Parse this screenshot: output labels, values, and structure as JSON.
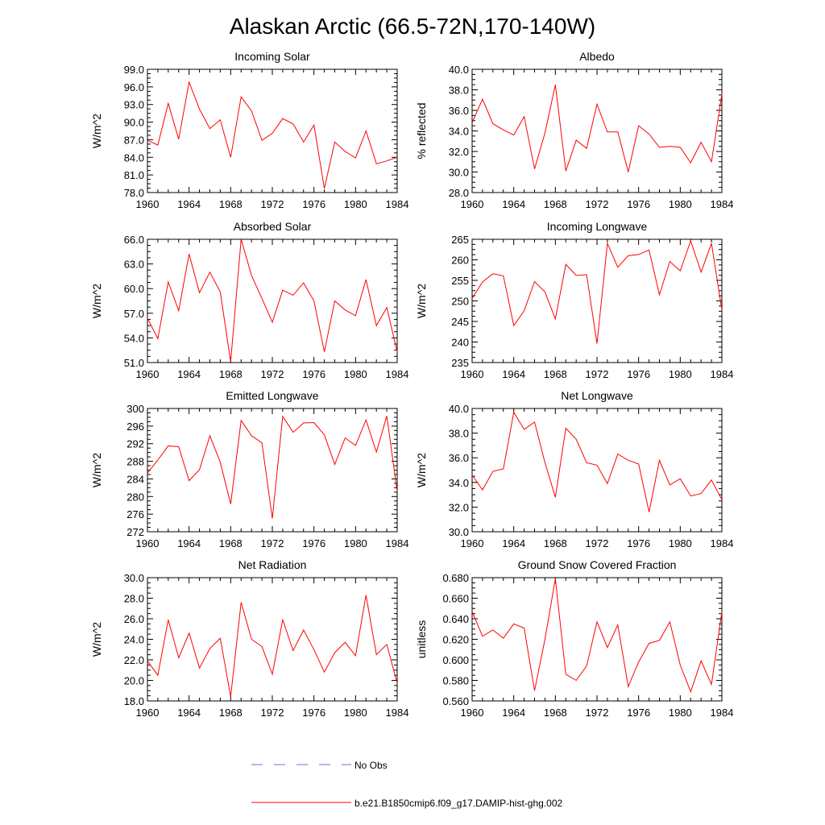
{
  "title": "Alaskan Arctic (66.5-72N,170-140W)",
  "colors": {
    "model": "#ff0000",
    "obs": "#6f6fd8",
    "axis": "#000000"
  },
  "legend": [
    {
      "name": "obs-legend",
      "label": "No Obs",
      "style": "dashed",
      "color": "#6f6fd8"
    },
    {
      "name": "model-legend",
      "label": "b.e21.B1850cmip6.f09_g17.DAMIP-hist-ghg.002",
      "style": "solid",
      "color": "#ff0000"
    }
  ],
  "chart_data": [
    {
      "type": "line",
      "title": "Incoming Solar",
      "ylabel": "W/m^2",
      "xlim": [
        1960,
        1984
      ],
      "ylim": [
        78,
        99
      ],
      "y_decimals": 1,
      "x_ticks": [
        1960,
        1964,
        1968,
        1972,
        1976,
        1980,
        1984
      ],
      "y_ticks": [
        78,
        81,
        84,
        87,
        90,
        93,
        96,
        99
      ],
      "series": [
        {
          "x": [
            1960,
            1961,
            1962,
            1963,
            1964,
            1965,
            1966,
            1967,
            1968,
            1969,
            1970,
            1971,
            1972,
            1973,
            1974,
            1975,
            1976,
            1977,
            1978,
            1979,
            1980,
            1981,
            1982,
            1983,
            1984
          ],
          "values": [
            86.9,
            86.1,
            93.2,
            87.1,
            96.8,
            92.2,
            88.9,
            90.4,
            84.0,
            94.3,
            91.9,
            86.9,
            88.1,
            90.6,
            89.7,
            86.6,
            89.5,
            78.7,
            86.6,
            85.0,
            83.9,
            88.5,
            82.9,
            83.4,
            84.0
          ]
        }
      ]
    },
    {
      "type": "line",
      "title": "Albedo",
      "ylabel": "% reflected",
      "xlim": [
        1960,
        1984
      ],
      "ylim": [
        28,
        40
      ],
      "y_decimals": 1,
      "x_ticks": [
        1960,
        1964,
        1968,
        1972,
        1976,
        1980,
        1984
      ],
      "y_ticks": [
        28,
        30,
        32,
        34,
        36,
        38,
        40
      ],
      "series": [
        {
          "x": [
            1960,
            1961,
            1962,
            1963,
            1964,
            1965,
            1966,
            1967,
            1968,
            1969,
            1970,
            1971,
            1972,
            1973,
            1974,
            1975,
            1976,
            1977,
            1978,
            1979,
            1980,
            1981,
            1982,
            1983,
            1984
          ],
          "values": [
            34.8,
            37.1,
            34.7,
            34.1,
            33.6,
            35.4,
            30.3,
            33.8,
            38.5,
            30.1,
            33.1,
            32.3,
            36.6,
            33.9,
            33.9,
            30.0,
            34.5,
            33.7,
            32.4,
            32.5,
            32.4,
            30.9,
            32.9,
            31.0,
            37.6
          ]
        }
      ]
    },
    {
      "type": "line",
      "title": "Absorbed Solar",
      "ylabel": "W/m^2",
      "xlim": [
        1960,
        1984
      ],
      "ylim": [
        51,
        66
      ],
      "y_decimals": 1,
      "x_ticks": [
        1960,
        1964,
        1968,
        1972,
        1976,
        1980,
        1984
      ],
      "y_ticks": [
        51,
        54,
        57,
        60,
        63,
        66
      ],
      "series": [
        {
          "x": [
            1960,
            1961,
            1962,
            1963,
            1964,
            1965,
            1966,
            1967,
            1968,
            1969,
            1970,
            1971,
            1972,
            1973,
            1974,
            1975,
            1976,
            1977,
            1978,
            1979,
            1980,
            1981,
            1982,
            1983,
            1984
          ],
          "values": [
            56.4,
            53.9,
            60.8,
            57.3,
            64.2,
            59.5,
            62.0,
            59.6,
            51.1,
            66.0,
            61.6,
            58.8,
            55.9,
            59.8,
            59.2,
            60.7,
            58.5,
            52.3,
            58.5,
            57.4,
            56.7,
            61.1,
            55.5,
            57.7,
            52.3
          ]
        }
      ]
    },
    {
      "type": "line",
      "title": "Incoming Longwave",
      "ylabel": "W/m^2",
      "xlim": [
        1960,
        1984
      ],
      "ylim": [
        235,
        265
      ],
      "y_decimals": 0,
      "x_ticks": [
        1960,
        1964,
        1968,
        1972,
        1976,
        1980,
        1984
      ],
      "y_ticks": [
        235,
        240,
        245,
        250,
        255,
        260,
        265
      ],
      "series": [
        {
          "x": [
            1960,
            1961,
            1962,
            1963,
            1964,
            1965,
            1966,
            1967,
            1968,
            1969,
            1970,
            1971,
            1972,
            1973,
            1974,
            1975,
            1976,
            1977,
            1978,
            1979,
            1980,
            1981,
            1982,
            1983,
            1984
          ],
          "values": [
            250.6,
            254.6,
            256.6,
            256.1,
            244.0,
            247.6,
            254.7,
            252.2,
            245.6,
            258.9,
            256.2,
            256.4,
            239.6,
            264.0,
            258.2,
            261.0,
            261.3,
            262.4,
            251.5,
            259.6,
            257.3,
            264.6,
            257.0,
            264.0,
            247.8
          ]
        }
      ]
    },
    {
      "type": "line",
      "title": "Emitted Longwave",
      "ylabel": "W/m^2",
      "xlim": [
        1960,
        1984
      ],
      "ylim": [
        272,
        300
      ],
      "y_decimals": 0,
      "x_ticks": [
        1960,
        1964,
        1968,
        1972,
        1976,
        1980,
        1984
      ],
      "y_ticks": [
        272,
        276,
        280,
        284,
        288,
        292,
        296,
        300
      ],
      "series": [
        {
          "x": [
            1960,
            1961,
            1962,
            1963,
            1964,
            1965,
            1966,
            1967,
            1968,
            1969,
            1970,
            1971,
            1972,
            1973,
            1974,
            1975,
            1976,
            1977,
            1978,
            1979,
            1980,
            1981,
            1982,
            1983,
            1984
          ],
          "values": [
            285.3,
            288.3,
            291.5,
            291.3,
            283.6,
            286.1,
            293.8,
            287.8,
            278.3,
            297.3,
            293.8,
            292.2,
            275.0,
            298.2,
            294.6,
            296.7,
            296.8,
            294.0,
            287.3,
            293.3,
            291.6,
            297.4,
            290.1,
            298.3,
            281.1
          ]
        }
      ]
    },
    {
      "type": "line",
      "title": "Net Longwave",
      "ylabel": "W/m^2",
      "xlim": [
        1960,
        1984
      ],
      "ylim": [
        30,
        40
      ],
      "y_decimals": 1,
      "x_ticks": [
        1960,
        1964,
        1968,
        1972,
        1976,
        1980,
        1984
      ],
      "y_ticks": [
        30,
        32,
        34,
        36,
        38,
        40
      ],
      "series": [
        {
          "x": [
            1960,
            1961,
            1962,
            1963,
            1964,
            1965,
            1966,
            1967,
            1968,
            1969,
            1970,
            1971,
            1972,
            1973,
            1974,
            1975,
            1976,
            1977,
            1978,
            1979,
            1980,
            1981,
            1982,
            1983,
            1984
          ],
          "values": [
            34.6,
            33.4,
            34.9,
            35.1,
            39.7,
            38.3,
            38.9,
            35.6,
            32.8,
            38.4,
            37.5,
            35.6,
            35.4,
            33.9,
            36.3,
            35.8,
            35.5,
            31.6,
            35.8,
            33.8,
            34.3,
            32.9,
            33.1,
            34.2,
            32.6
          ]
        }
      ]
    },
    {
      "type": "line",
      "title": "Net Radiation",
      "ylabel": "W/m^2",
      "xlim": [
        1960,
        1984
      ],
      "ylim": [
        18,
        30
      ],
      "y_decimals": 1,
      "x_ticks": [
        1960,
        1964,
        1968,
        1972,
        1976,
        1980,
        1984
      ],
      "y_ticks": [
        18,
        20,
        22,
        24,
        26,
        28,
        30
      ],
      "series": [
        {
          "x": [
            1960,
            1961,
            1962,
            1963,
            1964,
            1965,
            1966,
            1967,
            1968,
            1969,
            1970,
            1971,
            1972,
            1973,
            1974,
            1975,
            1976,
            1977,
            1978,
            1979,
            1980,
            1981,
            1982,
            1983,
            1984
          ],
          "values": [
            21.9,
            20.5,
            25.9,
            22.2,
            24.6,
            21.2,
            23.1,
            24.1,
            18.4,
            27.6,
            24.0,
            23.3,
            20.6,
            25.9,
            22.9,
            24.9,
            23.0,
            20.8,
            22.7,
            23.7,
            22.4,
            28.3,
            22.5,
            23.5,
            19.7
          ]
        }
      ]
    },
    {
      "type": "line",
      "title": "Ground Snow Covered Fraction",
      "ylabel": "unitless",
      "xlim": [
        1960,
        1984
      ],
      "ylim": [
        0.56,
        0.68
      ],
      "y_decimals": 3,
      "x_ticks": [
        1960,
        1964,
        1968,
        1972,
        1976,
        1980,
        1984
      ],
      "y_ticks": [
        0.56,
        0.58,
        0.6,
        0.62,
        0.64,
        0.66,
        0.68
      ],
      "series": [
        {
          "x": [
            1960,
            1961,
            1962,
            1963,
            1964,
            1965,
            1966,
            1967,
            1968,
            1969,
            1970,
            1971,
            1972,
            1973,
            1974,
            1975,
            1976,
            1977,
            1978,
            1979,
            1980,
            1981,
            1982,
            1983,
            1984
          ],
          "values": [
            0.647,
            0.623,
            0.629,
            0.621,
            0.635,
            0.631,
            0.57,
            0.62,
            0.679,
            0.586,
            0.58,
            0.594,
            0.637,
            0.612,
            0.634,
            0.574,
            0.598,
            0.616,
            0.619,
            0.637,
            0.595,
            0.569,
            0.599,
            0.576,
            0.647
          ]
        }
      ]
    }
  ]
}
